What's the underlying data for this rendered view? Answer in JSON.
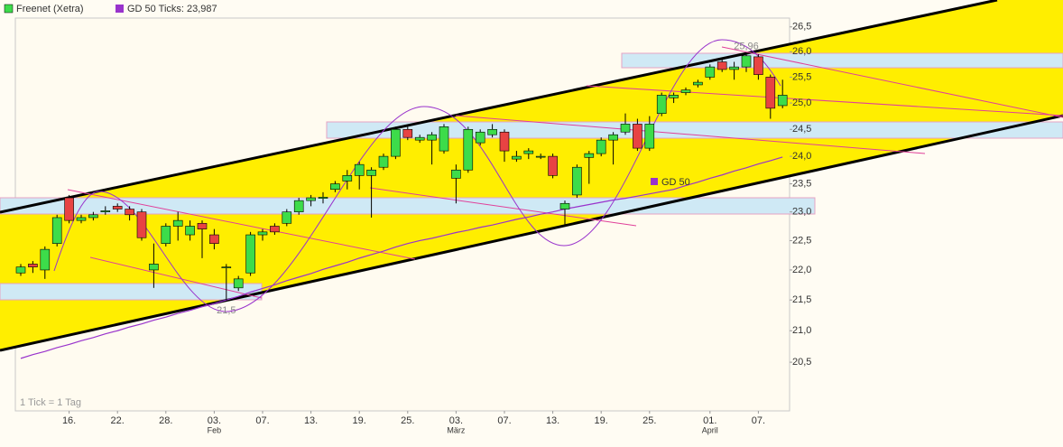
{
  "chart_data": {
    "type": "candlestick",
    "log_scale": true,
    "ylim": [
      19.75,
      26.68
    ],
    "yticks": [
      {
        "value": 26.5,
        "label": "26,5"
      },
      {
        "value": 26.0,
        "label": "26,0"
      },
      {
        "value": 25.5,
        "label": "25,5"
      },
      {
        "value": 25.0,
        "label": "25,0"
      },
      {
        "value": 24.5,
        "label": "24,5"
      },
      {
        "value": 24.0,
        "label": "24,0"
      },
      {
        "value": 23.5,
        "label": "23,5"
      },
      {
        "value": 23.0,
        "label": "23,0"
      },
      {
        "value": 22.5,
        "label": "22,5"
      },
      {
        "value": 22.0,
        "label": "22,0"
      },
      {
        "value": 21.5,
        "label": "21,5"
      },
      {
        "value": 21.0,
        "label": "21,0"
      },
      {
        "value": 20.5,
        "label": "20,5"
      }
    ],
    "categories": [
      null,
      null,
      null,
      null,
      "16.",
      null,
      null,
      null,
      "22.",
      null,
      null,
      null,
      "28.",
      null,
      null,
      null,
      "03.",
      null,
      null,
      null,
      "07.",
      null,
      null,
      null,
      "13.",
      null,
      null,
      null,
      "19.",
      null,
      null,
      null,
      "25.",
      null,
      null,
      null,
      "03.",
      null,
      null,
      null,
      "07.",
      null,
      null,
      null,
      "13.",
      null,
      null,
      null,
      "19.",
      null,
      null,
      null,
      "25.",
      null,
      null,
      null,
      null,
      "01.",
      null,
      null,
      null,
      "07.",
      null,
      null
    ],
    "months": [
      null,
      null,
      null,
      null,
      null,
      null,
      null,
      null,
      null,
      null,
      null,
      null,
      null,
      null,
      null,
      null,
      "Feb",
      null,
      null,
      null,
      null,
      null,
      null,
      null,
      null,
      null,
      null,
      null,
      null,
      null,
      null,
      null,
      null,
      null,
      null,
      null,
      "März",
      null,
      null,
      null,
      null,
      null,
      null,
      null,
      null,
      null,
      null,
      null,
      null,
      null,
      null,
      null,
      null,
      null,
      null,
      null,
      null,
      "April",
      null,
      null,
      null,
      null,
      null,
      null
    ],
    "series": [
      {
        "name": "Freenet (Xetra)",
        "color": "#3ddc4a",
        "down_color": "#e84343",
        "open": [
          21.95,
          22.1,
          22.0,
          22.45,
          23.25,
          22.85,
          22.9,
          23.0,
          23.1,
          23.05,
          23.0,
          22.0,
          22.45,
          22.75,
          22.6,
          22.8,
          22.6,
          22.05,
          21.7,
          21.95,
          22.6,
          22.75,
          22.8,
          23.0,
          23.2,
          23.24,
          23.4,
          23.55,
          23.65,
          23.65,
          23.8,
          24.0,
          24.5,
          24.3,
          24.3,
          24.1,
          23.6,
          23.75,
          24.25,
          24.4,
          24.45,
          23.95,
          24.05,
          24.0,
          24.0,
          23.05,
          23.3,
          23.98,
          24.05,
          24.3,
          24.45,
          24.6,
          24.15,
          24.8,
          25.1,
          25.2,
          25.35,
          25.5,
          25.8,
          25.65,
          25.7,
          25.9,
          25.5,
          24.95
        ],
        "high": [
          22.1,
          22.15,
          22.4,
          22.95,
          23.3,
          22.95,
          23.0,
          23.1,
          23.15,
          23.1,
          23.05,
          22.45,
          22.8,
          23.0,
          22.85,
          22.85,
          22.7,
          22.1,
          21.9,
          22.65,
          22.7,
          22.8,
          23.05,
          23.25,
          23.3,
          23.35,
          23.55,
          23.75,
          23.9,
          23.8,
          24.05,
          24.55,
          24.55,
          24.4,
          24.45,
          24.6,
          23.85,
          24.55,
          24.5,
          24.6,
          24.5,
          24.1,
          24.15,
          24.05,
          24.05,
          23.2,
          23.85,
          24.1,
          24.35,
          24.45,
          24.8,
          24.7,
          24.75,
          25.2,
          25.2,
          25.3,
          25.45,
          25.75,
          25.85,
          25.8,
          25.96,
          25.95,
          25.55,
          25.45
        ],
        "low": [
          21.9,
          21.95,
          21.85,
          22.4,
          22.8,
          22.8,
          22.85,
          22.95,
          23.0,
          22.85,
          22.5,
          21.7,
          22.4,
          22.5,
          22.5,
          22.2,
          22.35,
          21.5,
          21.65,
          21.9,
          22.5,
          22.6,
          22.75,
          22.95,
          23.1,
          23.15,
          23.35,
          23.4,
          23.4,
          22.9,
          23.75,
          23.95,
          24.3,
          24.25,
          23.85,
          24.05,
          23.15,
          23.7,
          24.2,
          24.35,
          23.9,
          23.9,
          23.95,
          23.95,
          23.6,
          22.75,
          23.25,
          23.5,
          24.0,
          23.85,
          24.4,
          24.1,
          24.1,
          24.75,
          25.0,
          25.15,
          25.3,
          25.45,
          25.6,
          25.45,
          25.6,
          25.45,
          24.7,
          24.9
        ],
        "close": [
          22.05,
          22.05,
          22.35,
          22.9,
          22.85,
          22.9,
          22.95,
          23.02,
          23.05,
          22.95,
          22.55,
          22.1,
          22.75,
          22.85,
          22.75,
          22.7,
          22.45,
          22.05,
          21.85,
          22.6,
          22.65,
          22.65,
          23.0,
          23.2,
          23.25,
          23.26,
          23.5,
          23.65,
          23.85,
          23.75,
          24.0,
          24.5,
          24.35,
          24.35,
          24.4,
          24.55,
          23.75,
          24.5,
          24.45,
          24.5,
          24.1,
          24.0,
          24.1,
          24.0,
          23.65,
          23.15,
          23.8,
          24.05,
          24.3,
          24.4,
          24.6,
          24.15,
          24.6,
          25.15,
          25.15,
          25.25,
          25.4,
          25.7,
          25.65,
          25.7,
          25.92,
          25.55,
          24.9,
          25.15
        ]
      },
      {
        "name": "GD 50 Ticks: 23,987",
        "color": "#9933cc",
        "label": "GD 50",
        "values": [
          20.56,
          20.62,
          20.67,
          20.73,
          20.78,
          20.84,
          20.89,
          20.95,
          21.0,
          21.06,
          21.11,
          21.17,
          21.22,
          21.28,
          21.33,
          21.39,
          21.44,
          21.5,
          21.56,
          21.63,
          21.69,
          21.75,
          21.82,
          21.88,
          21.94,
          22.01,
          22.07,
          22.13,
          22.2,
          22.26,
          22.32,
          22.39,
          22.45,
          22.5,
          22.54,
          22.59,
          22.64,
          22.68,
          22.73,
          22.77,
          22.82,
          22.87,
          22.91,
          22.96,
          23.0,
          23.05,
          23.09,
          23.13,
          23.17,
          23.21,
          23.24,
          23.28,
          23.32,
          23.36,
          23.4,
          23.47,
          23.53,
          23.6,
          23.66,
          23.73,
          23.79,
          23.86,
          23.92,
          23.987
        ]
      }
    ],
    "annotations": [
      {
        "label": "25,96",
        "value": 25.96,
        "at": 60
      },
      {
        "label": "21,5",
        "value": 21.5,
        "at": 17
      }
    ],
    "note": "1 Tick = 1 Tag"
  }
}
